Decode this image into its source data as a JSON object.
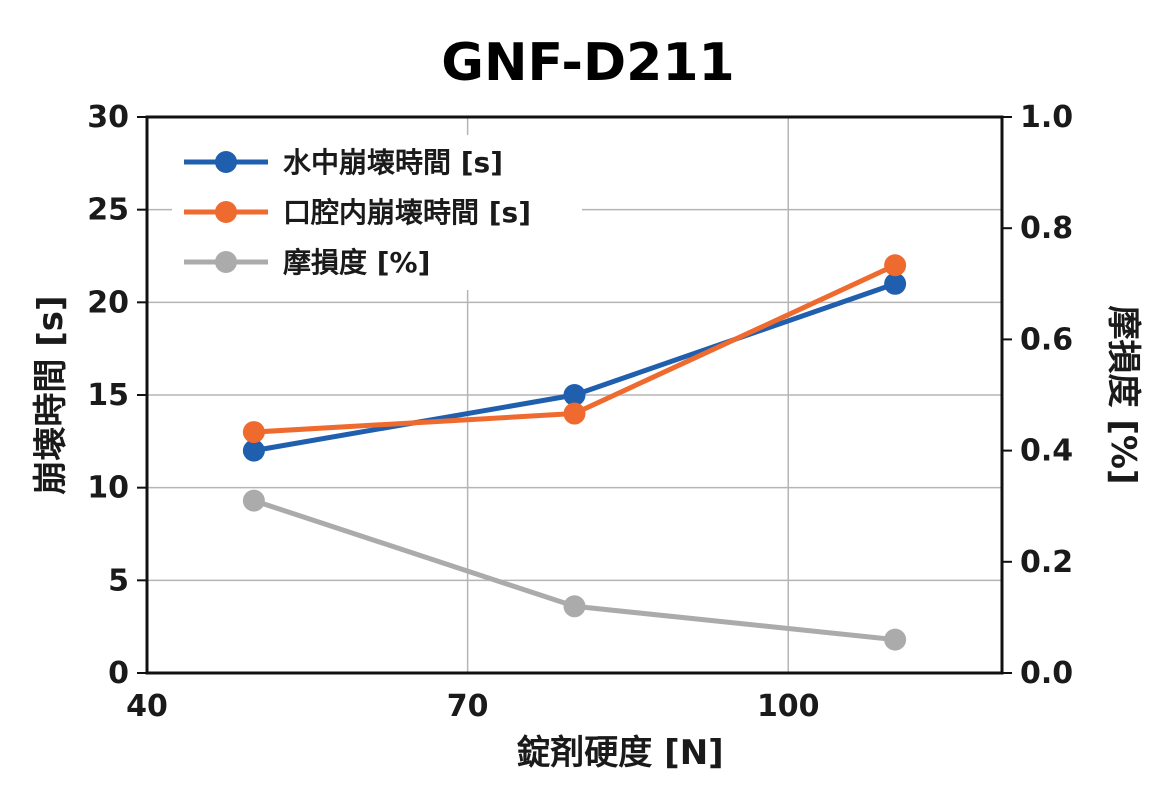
{
  "chart_data": {
    "type": "line",
    "title": "GNF-D211",
    "xlabel": "錠剤硬度 [N]",
    "ylabel_left": "崩壊時間 [s]",
    "ylabel_right": "摩損度 [%]",
    "xlim": [
      40,
      120
    ],
    "xticks": [
      "40",
      "70",
      "100"
    ],
    "xtick_values": [
      40,
      70,
      100
    ],
    "ylim_left": [
      0,
      30
    ],
    "yticks_left": [
      "0",
      "5",
      "10",
      "15",
      "20",
      "25",
      "30"
    ],
    "ylim_right": [
      0.0,
      1.0
    ],
    "yticks_right": [
      "0.0",
      "0.2",
      "0.4",
      "0.6",
      "0.8",
      "1.0"
    ],
    "grid": true,
    "legend_position": "top-left",
    "series": [
      {
        "name": "水中崩壊時間 [s]",
        "axis": "left",
        "color": "#1f5fae",
        "x": [
          50,
          80,
          110
        ],
        "values": [
          12,
          15,
          21
        ]
      },
      {
        "name": "口腔内崩壊時間 [s]",
        "axis": "left",
        "color": "#ee6a2e",
        "x": [
          50,
          80,
          110
        ],
        "values": [
          13,
          14,
          22
        ]
      },
      {
        "name": "摩損度 [%]",
        "axis": "right",
        "color": "#ababab",
        "x": [
          50,
          80,
          110
        ],
        "values": [
          0.31,
          0.12,
          0.06
        ]
      }
    ]
  }
}
